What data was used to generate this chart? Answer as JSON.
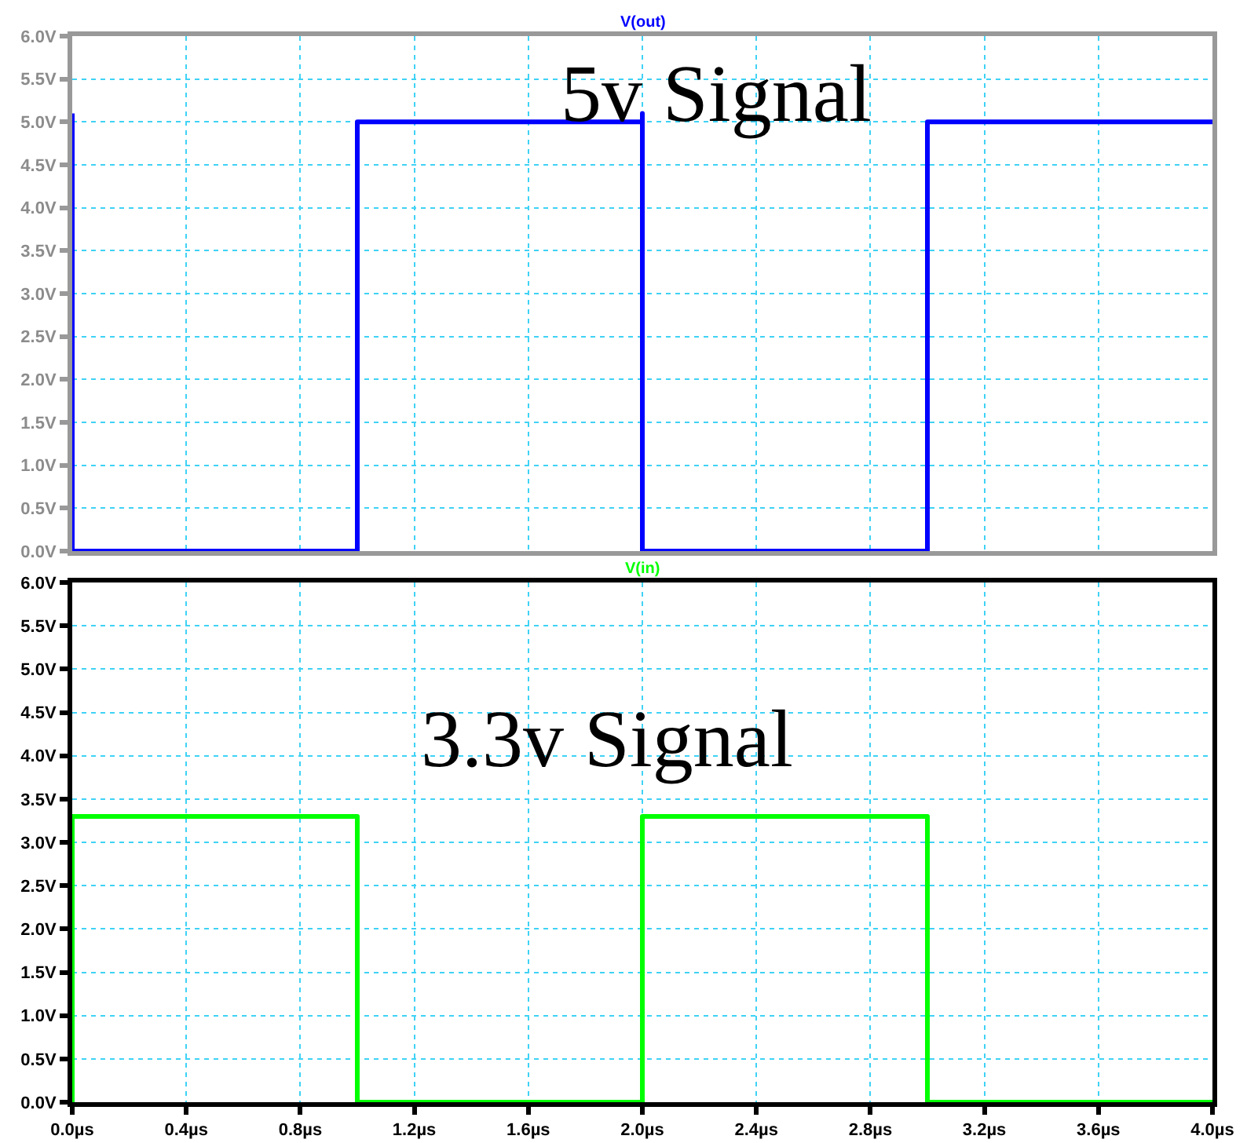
{
  "chart_data": [
    {
      "type": "line",
      "series": [
        {
          "name": "V(out)",
          "color": "#0000ff",
          "x": [
            0,
            0,
            1,
            1,
            2,
            2,
            2,
            3,
            3,
            4
          ],
          "values": [
            5.1,
            0,
            0,
            5,
            5,
            5.1,
            0,
            0,
            5,
            5
          ]
        }
      ],
      "xlim": [
        0,
        4
      ],
      "xticks": [
        0,
        0.4,
        0.8,
        1.2,
        1.6,
        2,
        2.4,
        2.8,
        3.2,
        3.6,
        4
      ],
      "ylim": [
        0,
        6
      ],
      "yticks": [
        {
          "value": 0,
          "label": "0.0V"
        },
        {
          "value": 0.5,
          "label": "0.5V"
        },
        {
          "value": 1,
          "label": "1.0V"
        },
        {
          "value": 1.5,
          "label": "1.5V"
        },
        {
          "value": 2,
          "label": "2.0V"
        },
        {
          "value": 2.5,
          "label": "2.5V"
        },
        {
          "value": 3,
          "label": "3.0V"
        },
        {
          "value": 3.5,
          "label": "3.5V"
        },
        {
          "value": 4,
          "label": "4.0V"
        },
        {
          "value": 4.5,
          "label": "4.5V"
        },
        {
          "value": 5,
          "label": "5.0V"
        },
        {
          "value": 5.5,
          "label": "5.5V"
        },
        {
          "value": 6,
          "label": "6.0V"
        }
      ],
      "tick_labels": "y",
      "grid": true,
      "annotations": [
        "5v Signal"
      ]
    },
    {
      "type": "line",
      "series": [
        {
          "name": "V(in)",
          "color": "#00ff00",
          "x": [
            0,
            0,
            1,
            1,
            2,
            2,
            3,
            3,
            4
          ],
          "values": [
            0,
            3.3,
            3.3,
            0,
            0,
            3.3,
            3.3,
            0,
            0
          ]
        }
      ],
      "xlim": [
        0,
        4
      ],
      "xticks": [
        {
          "value": 0,
          "label": "0.0µs"
        },
        {
          "value": 0.4,
          "label": "0.4µs"
        },
        {
          "value": 0.8,
          "label": "0.8µs"
        },
        {
          "value": 1.2,
          "label": "1.2µs"
        },
        {
          "value": 1.6,
          "label": "1.6µs"
        },
        {
          "value": 2,
          "label": "2.0µs"
        },
        {
          "value": 2.4,
          "label": "2.4µs"
        },
        {
          "value": 2.8,
          "label": "2.8µs"
        },
        {
          "value": 3.2,
          "label": "3.2µs"
        },
        {
          "value": 3.6,
          "label": "3.6µs"
        },
        {
          "value": 4,
          "label": "4.0µs"
        }
      ],
      "ylim": [
        0,
        6
      ],
      "yticks": [
        {
          "value": 0,
          "label": "0.0V"
        },
        {
          "value": 0.5,
          "label": "0.5V"
        },
        {
          "value": 1,
          "label": "1.0V"
        },
        {
          "value": 1.5,
          "label": "1.5V"
        },
        {
          "value": 2,
          "label": "2.0V"
        },
        {
          "value": 2.5,
          "label": "2.5V"
        },
        {
          "value": 3,
          "label": "3.0V"
        },
        {
          "value": 3.5,
          "label": "3.5V"
        },
        {
          "value": 4,
          "label": "4.0V"
        },
        {
          "value": 4.5,
          "label": "4.5V"
        },
        {
          "value": 5,
          "label": "5.0V"
        },
        {
          "value": 5.5,
          "label": "5.5V"
        },
        {
          "value": 6,
          "label": "6.0V"
        }
      ],
      "grid": true,
      "annotations": [
        "3.3v Signal"
      ]
    }
  ]
}
